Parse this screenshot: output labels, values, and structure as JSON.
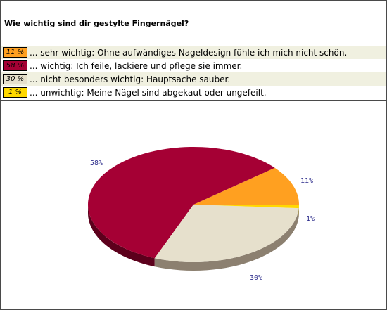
{
  "question": "Wie wichtig sind dir gestylte Fingernägel?",
  "chart_data": {
    "type": "pie",
    "title": "Wie wichtig sind dir gestylte Fingernägel?",
    "series": [
      {
        "name": "... sehr wichtig: Ohne aufwändiges Nageldesign fühle ich mich nicht schön.",
        "value": 11,
        "badge": "11 %",
        "pie_label": "11%",
        "color": "#ffa020",
        "shade": "#c07a10"
      },
      {
        "name": "... wichtig: Ich feile, lackiere und pflege sie immer.",
        "value": 58,
        "badge": "58 %",
        "pie_label": "58%",
        "color": "#a50034",
        "shade": "#5c001c"
      },
      {
        "name": "... nicht besonders wichtig: Hauptsache sauber.",
        "value": 30,
        "badge": "30 %",
        "pie_label": "30%",
        "color": "#e6e0cc",
        "shade": "#8c8070"
      },
      {
        "name": "... unwichtig: Meine Nägel sind abgekaut oder ungefeilt.",
        "value": 1,
        "badge": "1 %",
        "pie_label": "1%",
        "color": "#ffd800",
        "shade": "#b09000"
      }
    ]
  }
}
